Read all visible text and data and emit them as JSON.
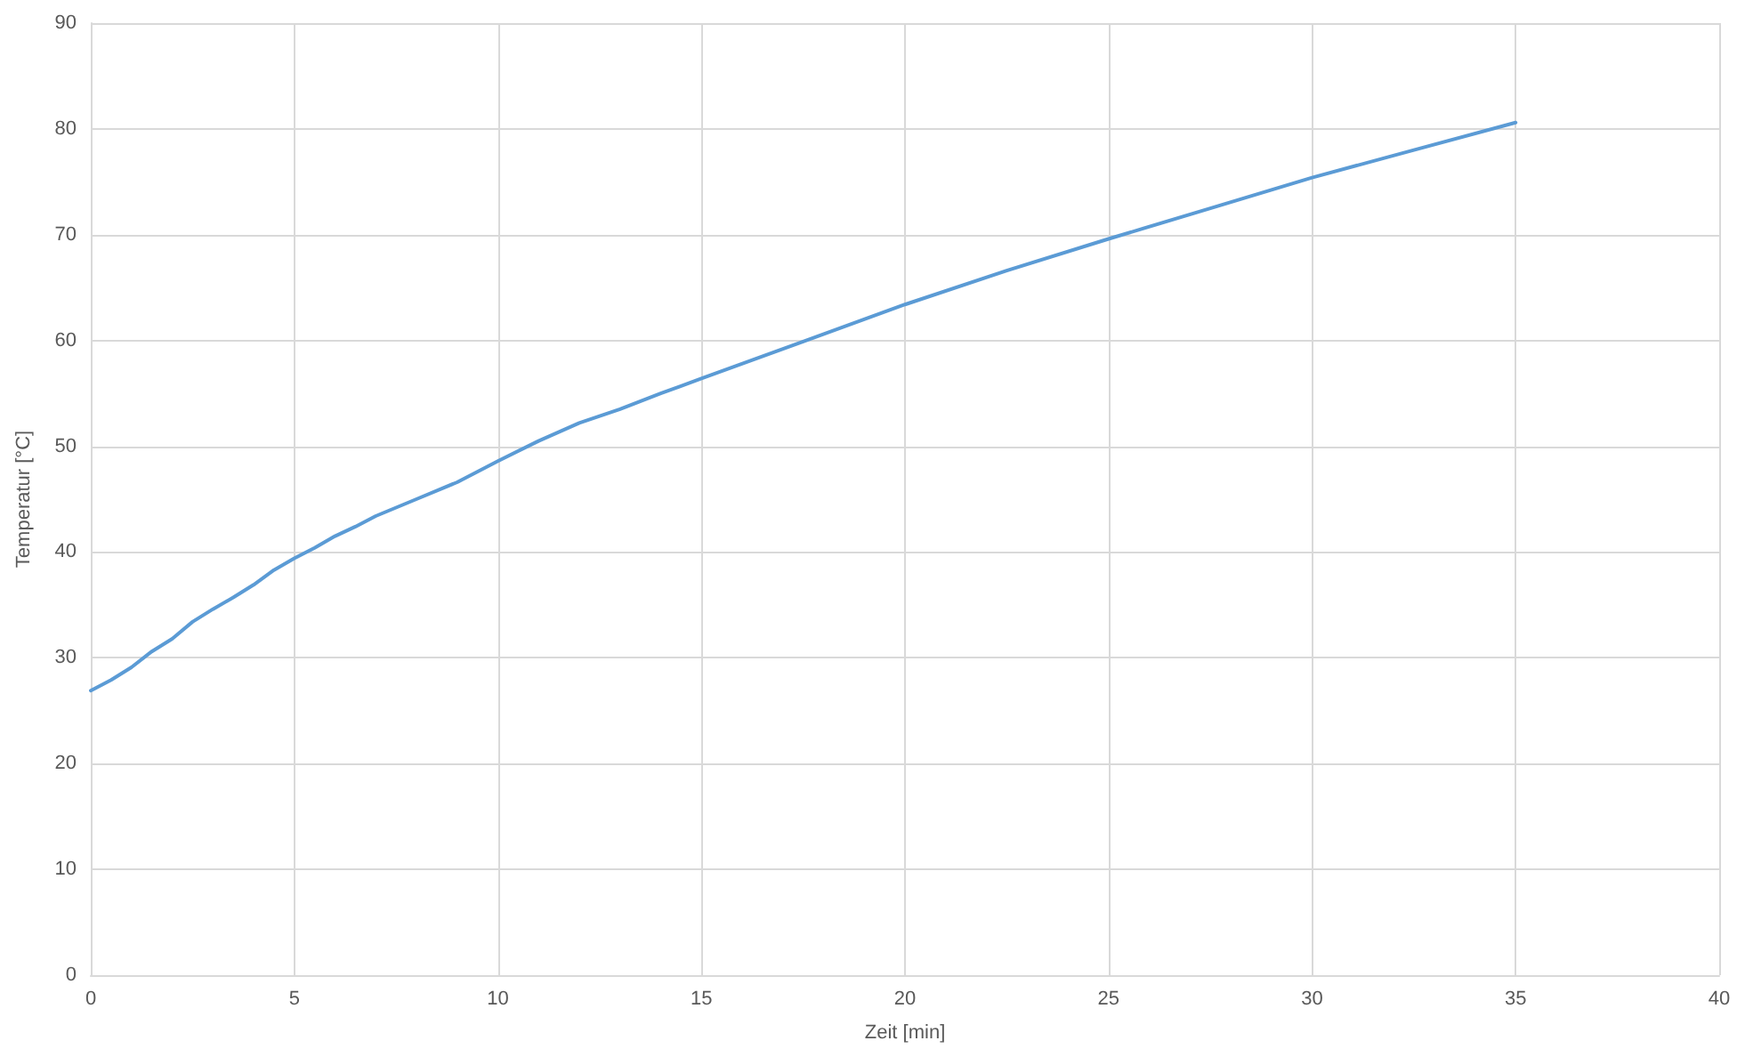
{
  "chart_data": {
    "type": "line",
    "xlabel": "Zeit [min]",
    "ylabel": "Temperatur [°C]",
    "x": [
      0,
      0.5,
      1,
      1.5,
      2,
      2.5,
      3,
      3.5,
      4,
      4.5,
      5,
      5.5,
      6,
      6.5,
      7,
      8,
      9,
      10,
      11,
      12,
      13,
      14,
      15,
      17.5,
      20,
      22.5,
      25,
      27.5,
      30,
      32.5,
      35
    ],
    "series": [
      {
        "color": "#5b9bd5",
        "values": [
          26.9,
          27.9,
          29.1,
          30.6,
          31.8,
          33.4,
          34.6,
          35.7,
          36.9,
          38.3,
          39.4,
          40.4,
          41.5,
          42.4,
          43.4,
          45,
          46.6,
          48.6,
          50.5,
          52.2,
          53.5,
          55,
          56.4,
          59.9,
          63.4,
          66.6,
          69.6,
          72.5,
          75.4,
          78,
          80.6
        ]
      }
    ],
    "xlim": [
      0,
      40
    ],
    "xticks": [
      0,
      5,
      10,
      15,
      20,
      25,
      30,
      35,
      40
    ],
    "ylim": [
      0,
      90
    ],
    "yticks": [
      0,
      10,
      20,
      30,
      40,
      50,
      60,
      70,
      80,
      90
    ],
    "grid": true,
    "marker": "none",
    "line_style": "solid"
  }
}
